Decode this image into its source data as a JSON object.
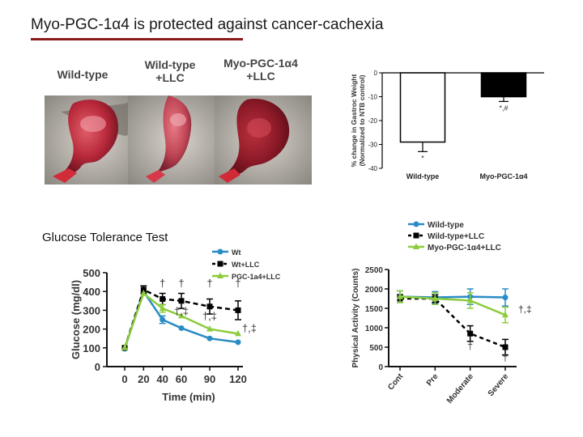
{
  "slide": {
    "title": "Myo-PGC-1α4 is protected against cancer-cachexia"
  },
  "photos": {
    "label1": "Wild-type",
    "label2a": "Wild-type",
    "label2b": "+LLC",
    "label3a": "Myo-PGC-1α4",
    "label3b": "+LLC"
  },
  "gtt_section_title": "Glucose Tolerance Test",
  "chart_data": [
    {
      "type": "bar",
      "ylabel_line1": "% change in Gastroc Weight",
      "ylabel_line2": "(Normalized to NTB control)",
      "categories": [
        "Wild-type",
        "Myo-PGC-1α4"
      ],
      "values": [
        -29,
        -10
      ],
      "errors": [
        4,
        2
      ],
      "annotations": [
        "*",
        "*,#"
      ],
      "colors": [
        "#ffffff",
        "#000000"
      ],
      "ylim": [
        -40,
        0
      ],
      "yticks": [
        0,
        -10,
        -20,
        -30,
        -40
      ],
      "ytick_labels": [
        "0",
        "-10",
        "-20",
        "-30",
        "-40"
      ]
    },
    {
      "type": "line",
      "xlabel": "Time (min)",
      "ylabel": "Glucose (mg/dl)",
      "x": [
        0,
        20,
        40,
        60,
        90,
        120
      ],
      "xtick_labels": [
        "0",
        "20",
        "40",
        "60",
        "90",
        "120"
      ],
      "ylim": [
        0,
        500
      ],
      "yticks": [
        0,
        100,
        200,
        300,
        400,
        500
      ],
      "ytick_labels": [
        "0",
        "100",
        "200",
        "300",
        "400",
        "500"
      ],
      "legend": "top-right",
      "series": [
        {
          "name": "Wt",
          "color": "#2a8cc4",
          "dashed": false,
          "marker": "circle",
          "values": [
            95,
            400,
            250,
            205,
            150,
            130
          ],
          "errors": [
            0,
            0,
            20,
            0,
            0,
            0
          ]
        },
        {
          "name": "Wt+LLC",
          "color": "#000000",
          "dashed": true,
          "marker": "square",
          "values": [
            100,
            410,
            360,
            350,
            320,
            300
          ],
          "errors": [
            0,
            20,
            30,
            40,
            40,
            50
          ]
        },
        {
          "name": "PGC-1a4+LLC",
          "color": "#8ccc3c",
          "dashed": false,
          "marker": "triangle",
          "values": [
            100,
            390,
            310,
            270,
            200,
            175
          ],
          "errors": [
            0,
            0,
            20,
            0,
            0,
            0
          ]
        }
      ],
      "annotations": [
        {
          "text": "†",
          "x": 40,
          "y": 425
        },
        {
          "text": "†",
          "x": 60,
          "y": 425
        },
        {
          "text": "†",
          "x": 90,
          "y": 425
        },
        {
          "text": "†",
          "x": 120,
          "y": 425
        },
        {
          "text": "†,‡",
          "x": 60,
          "y": 275
        },
        {
          "text": "†,‡",
          "x": 90,
          "y": 250
        },
        {
          "text": "†,‡",
          "x": 132,
          "y": 185
        }
      ]
    },
    {
      "type": "line",
      "ylabel": "Physical Activity (Counts)",
      "categories": [
        "Cont",
        "Pre",
        "Moderate",
        "Severe"
      ],
      "ylim": [
        0,
        2500
      ],
      "yticks": [
        0,
        500,
        1000,
        1500,
        2000,
        2500
      ],
      "ytick_labels": [
        "0",
        "500",
        "1000",
        "1500",
        "2000",
        "2500"
      ],
      "legend": "top-left",
      "series": [
        {
          "name": "Wild-type",
          "color": "#2a8cc4",
          "dashed": false,
          "marker": "circle",
          "values": [
            1800,
            1780,
            1800,
            1780
          ],
          "errors": [
            150,
            150,
            200,
            220
          ]
        },
        {
          "name": "Wild-type+LLC",
          "color": "#000000",
          "dashed": true,
          "marker": "square",
          "values": [
            1750,
            1750,
            850,
            500
          ],
          "errors": [
            100,
            100,
            200,
            200
          ]
        },
        {
          "name": "Myo-PGC-1α4+LLC",
          "color": "#8ccc3c",
          "dashed": false,
          "marker": "triangle",
          "values": [
            1800,
            1750,
            1700,
            1330
          ],
          "errors": [
            150,
            150,
            200,
            200
          ]
        }
      ],
      "annotations": [
        {
          "text": "†",
          "category": "Moderate",
          "y": 450
        },
        {
          "text": "†",
          "category": "Severe",
          "y": 150
        },
        {
          "text": "†,‡",
          "category": "Severe",
          "y": 1400,
          "offset": 16
        }
      ]
    }
  ]
}
